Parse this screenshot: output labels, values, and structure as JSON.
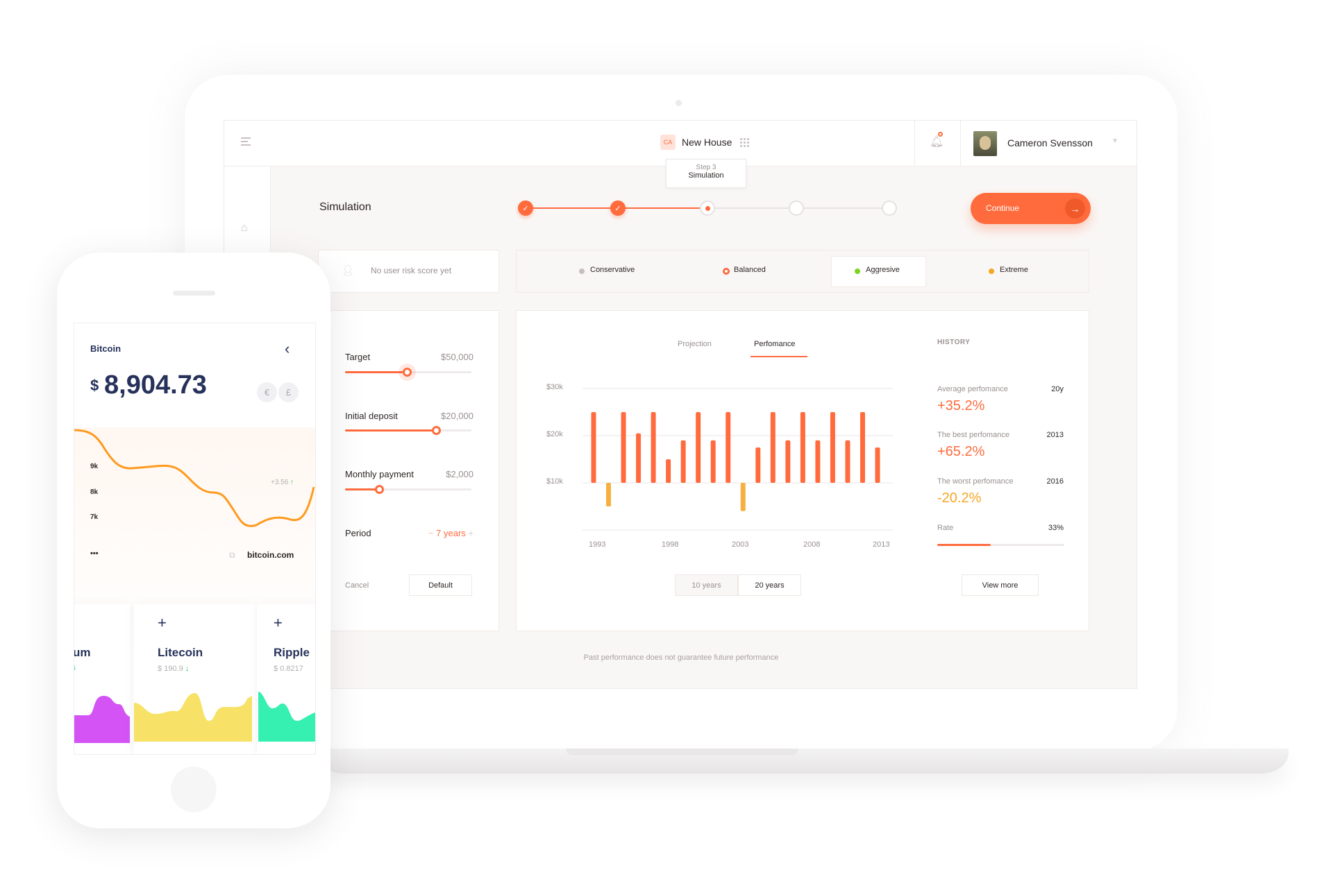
{
  "header": {
    "project_badge": "CA",
    "project_name": "New House",
    "user_name": "Cameron Svensson",
    "tooltip_step": "Step 3",
    "tooltip_title": "Simulation"
  },
  "page": {
    "title": "Simulation",
    "continue_label": "Continue",
    "steps_total": 5,
    "current_step": 3,
    "disclaimer": "Past performance does not guarantee future performance"
  },
  "risk": {
    "placeholder": "No user risk score yet",
    "options": [
      {
        "label": "Conservative",
        "color": "#c9bfbf"
      },
      {
        "label": "Balanced",
        "color": "#ff6b3d"
      },
      {
        "label": "Aggresive",
        "color": "#7ed321",
        "selected": true
      },
      {
        "label": "Extreme",
        "color": "#f5a623"
      }
    ]
  },
  "form": {
    "target_label": "Target",
    "target_value": "$50,000",
    "target_level": 0.49,
    "deposit_label": "Initial deposit",
    "deposit_value": "$20,000",
    "deposit_level": 0.72,
    "monthly_label": "Monthly payment",
    "monthly_value": "$2,000",
    "monthly_level": 0.27,
    "period_label": "Period",
    "period_value": "7 years",
    "minus": "−",
    "plus": "+",
    "cancel_label": "Cancel",
    "default_label": "Default"
  },
  "chart_tabs": {
    "projection": "Projection",
    "performance": "Perfomance",
    "active": "performance"
  },
  "range_buttons": {
    "ten": "10 years",
    "twenty": "20 years",
    "selected": "20 years"
  },
  "chart_data": {
    "type": "bar",
    "ylim": [
      0,
      30
    ],
    "yticks": [
      "$30k",
      "$20k",
      "$10k"
    ],
    "xticks": [
      "1993",
      "1998",
      "2003",
      "2008",
      "2013"
    ],
    "bar_base": 10,
    "grid": true,
    "x": [
      1993,
      1994,
      1995,
      1996,
      1997,
      1998,
      1999,
      2000,
      2001,
      2002,
      2003,
      2004,
      2005,
      2006,
      2007,
      2008,
      2009,
      2010,
      2011,
      2012
    ],
    "values": [
      25,
      5,
      25,
      20.5,
      25,
      15,
      19,
      25,
      19,
      25,
      4,
      17.5,
      25,
      19,
      25,
      19,
      25,
      19,
      25,
      17.5
    ],
    "colors": {
      "positive": "#ff6b3d",
      "negative": "#f5b041"
    }
  },
  "history": {
    "title": "HISTORY",
    "avg_label": "Average perfomance",
    "avg_period": "20y",
    "avg_value": "+35.2%",
    "best_label": "The best perfomance",
    "best_year": "2013",
    "best_value": "+65.2%",
    "worst_label": "The worst perfomance",
    "worst_year": "2016",
    "worst_value": "-20.2%",
    "rate_label": "Rate",
    "rate_value": "33%",
    "rate_level": 0.42,
    "view_more": "View more"
  },
  "phone": {
    "coin": "Bitcoin",
    "currency": "$",
    "price": "8,904.73",
    "currency_options": [
      "€",
      "£"
    ],
    "yticks": [
      "9k",
      "8k",
      "7k"
    ],
    "change": "+3.56",
    "change_arrow": "↑",
    "more": "•••",
    "source": "bitcoin.com",
    "cards": [
      {
        "name": "um",
        "price": "",
        "arrow": "↓",
        "color": "#d353f5"
      },
      {
        "name": "Litecoin",
        "price": "$ 190.9",
        "arrow": "↓",
        "color": "#f7e267"
      },
      {
        "name": "Ripple",
        "price": "$ 0.8217",
        "arrow": "",
        "color": "#35f0b0"
      }
    ],
    "add": "+"
  }
}
